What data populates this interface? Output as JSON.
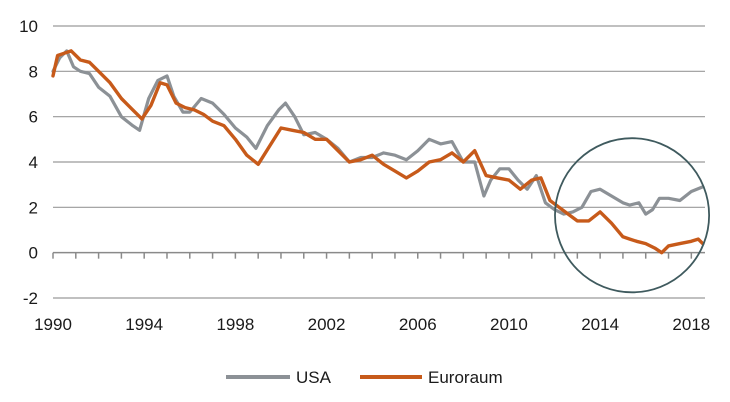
{
  "chart_data": {
    "type": "line",
    "title": "",
    "xlabel": "",
    "ylabel": "",
    "xlim": [
      1990,
      2018.6
    ],
    "ylim": [
      -2,
      10
    ],
    "x_ticks": [
      1990,
      1994,
      1998,
      2002,
      2006,
      2010,
      2014,
      2018
    ],
    "x_tick_labels": [
      "1990",
      "1994",
      "1998",
      "2002",
      "2006",
      "2010",
      "2014",
      "2018"
    ],
    "y_ticks": [
      -2,
      0,
      2,
      4,
      6,
      8,
      10
    ],
    "y_tick_labels": [
      "-2",
      "0",
      "2",
      "4",
      "6",
      "8",
      "10"
    ],
    "grid": "horizontal",
    "legend_position": "bottom",
    "colors": {
      "usa": "#8c9196",
      "euro": "#c75a1a",
      "grid": "#9a9a9a",
      "circle": "#3f5a5e"
    },
    "series": [
      {
        "name": "USA",
        "key": "usa",
        "x": [
          1990.0,
          1990.3,
          1990.6,
          1990.9,
          1991.2,
          1991.6,
          1992.0,
          1992.5,
          1993.0,
          1993.5,
          1993.8,
          1994.2,
          1994.6,
          1995.0,
          1995.3,
          1995.7,
          1996.0,
          1996.5,
          1997.0,
          1997.5,
          1998.0,
          1998.5,
          1998.9,
          1999.4,
          1999.9,
          2000.2,
          2000.6,
          2001.0,
          2001.5,
          2002.0,
          2002.5,
          2003.0,
          2003.5,
          2004.0,
          2004.5,
          2005.0,
          2005.5,
          2006.0,
          2006.5,
          2007.0,
          2007.5,
          2008.0,
          2008.5,
          2008.9,
          2009.2,
          2009.6,
          2010.0,
          2010.4,
          2010.8,
          2011.2,
          2011.6,
          2012.0,
          2012.4,
          2012.8,
          2013.2,
          2013.6,
          2014.0,
          2014.5,
          2015.0,
          2015.3,
          2015.7,
          2016.0,
          2016.3,
          2016.6,
          2017.0,
          2017.5,
          2018.0,
          2018.5
        ],
        "values": [
          8.0,
          8.6,
          8.9,
          8.2,
          8.0,
          7.9,
          7.3,
          6.9,
          6.0,
          5.6,
          5.4,
          6.8,
          7.6,
          7.8,
          6.9,
          6.2,
          6.2,
          6.8,
          6.6,
          6.1,
          5.5,
          5.1,
          4.6,
          5.6,
          6.3,
          6.6,
          6.0,
          5.2,
          5.3,
          5.0,
          4.6,
          4.0,
          4.2,
          4.2,
          4.4,
          4.3,
          4.1,
          4.5,
          5.0,
          4.8,
          4.9,
          4.0,
          4.0,
          2.5,
          3.2,
          3.7,
          3.7,
          3.2,
          2.8,
          3.4,
          2.2,
          1.9,
          1.7,
          1.8,
          2.0,
          2.7,
          2.8,
          2.5,
          2.2,
          2.1,
          2.2,
          1.7,
          1.9,
          2.4,
          2.4,
          2.3,
          2.7,
          2.9
        ]
      },
      {
        "name": "Euroraum",
        "key": "euro",
        "x": [
          1990.0,
          1990.2,
          1990.5,
          1990.8,
          1991.2,
          1991.6,
          1992.0,
          1992.5,
          1993.0,
          1993.5,
          1993.9,
          1994.3,
          1994.7,
          1995.0,
          1995.4,
          1995.8,
          1996.2,
          1996.6,
          1997.0,
          1997.5,
          1998.0,
          1998.5,
          1999.0,
          1999.5,
          2000.0,
          2000.5,
          2001.0,
          2001.5,
          2002.0,
          2002.5,
          2003.0,
          2003.5,
          2004.0,
          2004.5,
          2005.0,
          2005.5,
          2006.0,
          2006.5,
          2007.0,
          2007.5,
          2008.0,
          2008.5,
          2009.0,
          2009.5,
          2010.0,
          2010.5,
          2011.0,
          2011.4,
          2011.8,
          2012.2,
          2012.6,
          2013.0,
          2013.5,
          2014.0,
          2014.5,
          2015.0,
          2015.3,
          2015.6,
          2016.0,
          2016.4,
          2016.7,
          2017.0,
          2017.5,
          2018.0,
          2018.3,
          2018.5
        ],
        "values": [
          7.8,
          8.7,
          8.8,
          8.9,
          8.5,
          8.4,
          8.0,
          7.5,
          6.8,
          6.3,
          5.9,
          6.5,
          7.5,
          7.4,
          6.6,
          6.4,
          6.3,
          6.1,
          5.8,
          5.6,
          5.0,
          4.3,
          3.9,
          4.7,
          5.5,
          5.4,
          5.3,
          5.0,
          5.0,
          4.5,
          4.0,
          4.1,
          4.3,
          3.9,
          3.6,
          3.3,
          3.6,
          4.0,
          4.1,
          4.4,
          4.0,
          4.5,
          3.4,
          3.3,
          3.2,
          2.8,
          3.2,
          3.3,
          2.3,
          2.0,
          1.7,
          1.4,
          1.4,
          1.8,
          1.3,
          0.7,
          0.6,
          0.5,
          0.4,
          0.2,
          0.0,
          0.3,
          0.4,
          0.5,
          0.6,
          0.4
        ]
      }
    ],
    "annotations": [
      {
        "type": "circle",
        "label": "highlighted period",
        "x_center": 2015.4,
        "y_center": 1.65
      }
    ]
  }
}
